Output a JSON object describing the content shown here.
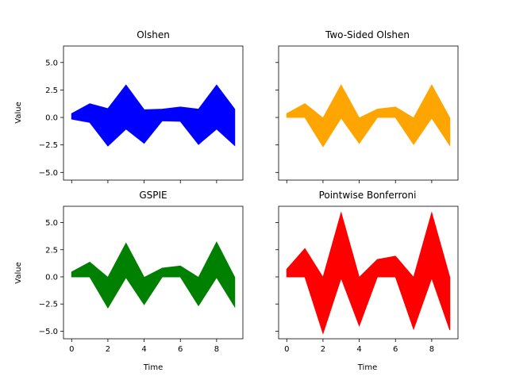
{
  "chart_data": [
    {
      "type": "area",
      "title": "Olshen",
      "xlabel": "",
      "ylabel": "Value",
      "color": "#0000ff",
      "xlim": [
        -0.45,
        9.45
      ],
      "ylim": [
        -5.7,
        6.5
      ],
      "x": [
        0,
        1,
        2,
        3,
        4,
        5,
        6,
        7,
        8,
        9
      ],
      "upper": [
        0.35,
        1.25,
        0.8,
        2.95,
        0.7,
        0.75,
        0.95,
        0.75,
        2.95,
        0.75
      ],
      "lower": [
        -0.15,
        -0.45,
        -2.6,
        -1.05,
        -2.35,
        -0.3,
        -0.35,
        -2.45,
        -1.05,
        -2.55
      ],
      "xticks": [
        0,
        2,
        4,
        6,
        8
      ],
      "xticklabels": [
        "",
        "",
        "",
        "",
        ""
      ],
      "yticks": [
        5,
        2.5,
        0,
        -2.5,
        -5
      ],
      "yticklabels": [
        "5.0",
        "2.5",
        "0.0",
        "−2.5",
        "−5.0"
      ]
    },
    {
      "type": "area",
      "title": "Two-Sided Olshen",
      "xlabel": "",
      "ylabel": "",
      "color": "#ffa500",
      "xlim": [
        -0.45,
        9.45
      ],
      "ylim": [
        -5.7,
        6.5
      ],
      "x": [
        0,
        1,
        2,
        3,
        4,
        5,
        6,
        7,
        8,
        9
      ],
      "upper": [
        0.35,
        1.25,
        -0.05,
        2.95,
        -0.05,
        0.75,
        0.95,
        -0.05,
        2.95,
        -0.05
      ],
      "lower": [
        0,
        0,
        -2.65,
        -0.05,
        -2.35,
        0,
        0,
        -2.45,
        -0.05,
        -2.55
      ],
      "xticks": [
        0,
        2,
        4,
        6,
        8
      ],
      "xticklabels": [
        "",
        "",
        "",
        "",
        ""
      ],
      "yticks": [
        5,
        2.5,
        0,
        -2.5,
        -5
      ],
      "yticklabels": [
        "",
        "",
        "",
        "",
        ""
      ]
    },
    {
      "type": "area",
      "title": "GSPIE",
      "xlabel": "Time",
      "ylabel": "Value",
      "color": "#008000",
      "xlim": [
        -0.45,
        9.45
      ],
      "ylim": [
        -5.7,
        6.5
      ],
      "x": [
        0,
        1,
        2,
        3,
        4,
        5,
        6,
        7,
        8,
        9
      ],
      "upper": [
        0.45,
        1.35,
        -0.05,
        3.1,
        -0.05,
        0.8,
        1.0,
        -0.05,
        3.2,
        -0.05
      ],
      "lower": [
        0,
        0,
        -2.85,
        -0.05,
        -2.55,
        0,
        0,
        -2.65,
        -0.05,
        -2.75
      ],
      "xticks": [
        0,
        2,
        4,
        6,
        8
      ],
      "xticklabels": [
        "0",
        "2",
        "4",
        "6",
        "8"
      ],
      "yticks": [
        5,
        2.5,
        0,
        -2.5,
        -5
      ],
      "yticklabels": [
        "5.0",
        "2.5",
        "0.0",
        "−2.5",
        "−5.0"
      ]
    },
    {
      "type": "area",
      "title": "Pointwise Bonferroni",
      "xlabel": "Time",
      "ylabel": "",
      "color": "#ff0000",
      "xlim": [
        -0.45,
        9.45
      ],
      "ylim": [
        -5.7,
        6.5
      ],
      "x": [
        0,
        1,
        2,
        3,
        4,
        5,
        6,
        7,
        8,
        9
      ],
      "upper": [
        0.7,
        2.6,
        -0.05,
        5.9,
        -0.05,
        1.6,
        1.9,
        -0.05,
        5.9,
        -0.05
      ],
      "lower": [
        0,
        0,
        -5.2,
        -0.1,
        -4.5,
        0,
        0,
        -4.8,
        -0.1,
        -4.9
      ],
      "xticks": [
        0,
        2,
        4,
        6,
        8
      ],
      "xticklabels": [
        "0",
        "2",
        "4",
        "6",
        "8"
      ],
      "yticks": [
        5,
        2.5,
        0,
        -2.5,
        -5
      ],
      "yticklabels": [
        "",
        "",
        "",
        "",
        ""
      ]
    }
  ]
}
